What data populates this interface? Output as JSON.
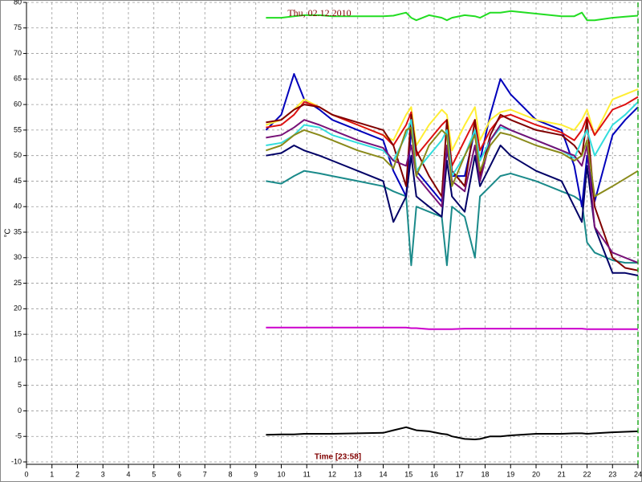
{
  "chart_data": {
    "type": "line",
    "title": "Thu, 02.12.2010",
    "x_label": "Time [23:58]",
    "y_label": "°C",
    "grid": true,
    "xlim": [
      0,
      24
    ],
    "xticks": [
      0,
      1,
      2,
      3,
      4,
      5,
      6,
      7,
      8,
      9,
      10,
      11,
      12,
      13,
      14,
      15,
      16,
      17,
      18,
      19,
      20,
      21,
      22,
      23,
      24
    ],
    "ylim": [
      -10,
      80
    ],
    "yticks": [
      -10,
      -5,
      0,
      5,
      10,
      15,
      20,
      25,
      30,
      35,
      40,
      45,
      50,
      55,
      60,
      65,
      70,
      75,
      80
    ],
    "x": [
      9.4,
      10,
      10.5,
      10.9,
      11.5,
      12,
      13,
      14,
      14.4,
      14.9,
      15.1,
      15.3,
      15.8,
      16.3,
      16.5,
      16.7,
      17.2,
      17.6,
      17.8,
      18.2,
      18.6,
      19,
      20,
      21,
      21.5,
      21.8,
      22,
      22.3,
      23,
      23.5,
      24
    ],
    "series": [
      {
        "color": "#22dd22",
        "values": [
          77,
          77,
          77.3,
          77.5,
          77.5,
          77.3,
          77.3,
          77.3,
          77.4,
          78,
          77,
          76.5,
          77.5,
          77,
          76.5,
          77,
          77.5,
          77.3,
          77,
          78,
          78,
          78.3,
          77.8,
          77.3,
          77.3,
          78,
          76.5,
          76.5,
          77,
          77.2,
          77.4
        ]
      },
      {
        "color": "#cc00cc",
        "values": [
          16.3,
          16.3,
          16.3,
          16.3,
          16.3,
          16.3,
          16.3,
          16.3,
          16.3,
          16.3,
          16.2,
          16.2,
          16,
          16,
          16,
          16,
          16.1,
          16.1,
          16.1,
          16.1,
          16.1,
          16.1,
          16.1,
          16.1,
          16.1,
          16.1,
          16,
          16,
          16,
          16,
          16
        ]
      },
      {
        "color": "#000000",
        "values": [
          -4.7,
          -4.6,
          -4.6,
          -4.5,
          -4.5,
          -4.5,
          -4.4,
          -4.3,
          -3.8,
          -3.2,
          -3.5,
          -3.8,
          -4,
          -4.5,
          -4.6,
          -5,
          -5.5,
          -5.6,
          -5.5,
          -5,
          -5,
          -4.8,
          -4.5,
          -4.5,
          -4.4,
          -4.4,
          -4.5,
          -4.4,
          -4.2,
          -4.1,
          -4
        ]
      },
      {
        "color": "#1a8a8a",
        "values": [
          45,
          44.5,
          46,
          47,
          46.5,
          46,
          45,
          44,
          43,
          42,
          28.5,
          40,
          39,
          38,
          28.5,
          40,
          38,
          30,
          42,
          44,
          46,
          46.5,
          45,
          43,
          42,
          41,
          33,
          31,
          29.5,
          29,
          29
        ]
      },
      {
        "color": "#0000bb",
        "values": [
          55,
          58,
          66,
          61,
          59,
          57,
          55,
          53,
          47,
          42,
          55,
          47,
          44,
          41,
          51,
          46,
          46,
          55,
          49,
          58,
          65,
          62,
          57,
          55,
          48,
          40,
          50,
          41,
          54,
          57,
          59.5
        ]
      },
      {
        "color": "#000066",
        "values": [
          50,
          50.5,
          52,
          51,
          50,
          49,
          47,
          45,
          37,
          42,
          50,
          42,
          40,
          38,
          49,
          42,
          39,
          50,
          44,
          48,
          52,
          50,
          47,
          45,
          40,
          37,
          48,
          36,
          27,
          27,
          26.5
        ]
      },
      {
        "color": "#ffee33",
        "values": [
          56,
          57,
          59,
          61,
          59.5,
          58,
          56,
          54,
          53,
          58,
          59.5,
          52,
          56,
          59,
          58,
          51,
          56,
          59.5,
          53,
          57,
          58.5,
          59,
          57,
          56,
          55,
          57,
          59,
          54,
          61,
          62,
          63
        ]
      },
      {
        "color": "#dd1111",
        "values": [
          55.5,
          56,
          58,
          60.5,
          59.5,
          58,
          56,
          54,
          52,
          56,
          58.5,
          50,
          53,
          56,
          57,
          48,
          53,
          57,
          51,
          55,
          57.5,
          58,
          56,
          54.5,
          53,
          55,
          57.5,
          54,
          59,
          60,
          61.5
        ]
      },
      {
        "color": "#800000",
        "values": [
          56.5,
          57,
          59,
          60,
          59.5,
          58,
          56.5,
          55,
          52,
          44,
          58,
          51,
          46,
          42,
          57,
          47,
          44,
          57,
          46,
          54,
          58,
          57,
          55,
          54,
          52,
          50,
          57,
          40,
          30,
          28,
          27.5
        ]
      },
      {
        "color": "#33dddd",
        "values": [
          52,
          52.5,
          54,
          56,
          55.5,
          54,
          52.5,
          51,
          49,
          54,
          57,
          47,
          50,
          53,
          55,
          46,
          50,
          55,
          49,
          53,
          55.5,
          55,
          53,
          51,
          49.5,
          53,
          55,
          50,
          56,
          58,
          60.5
        ]
      },
      {
        "color": "#771177",
        "values": [
          53.5,
          54,
          55.5,
          57,
          56,
          55,
          53,
          51.5,
          49,
          48,
          52,
          46,
          43,
          40,
          52,
          45,
          43,
          52,
          45,
          53,
          56,
          55,
          53,
          51,
          50,
          48,
          52,
          36,
          31,
          30,
          29
        ]
      },
      {
        "color": "#8a8a1a",
        "values": [
          51,
          52,
          54,
          55,
          54,
          53,
          51,
          49.5,
          47.5,
          55,
          55.5,
          46,
          52,
          55,
          54,
          44,
          50,
          54,
          47,
          52,
          54.5,
          54,
          52,
          50.5,
          49,
          50,
          53,
          42,
          44,
          45.5,
          47
        ]
      }
    ]
  }
}
